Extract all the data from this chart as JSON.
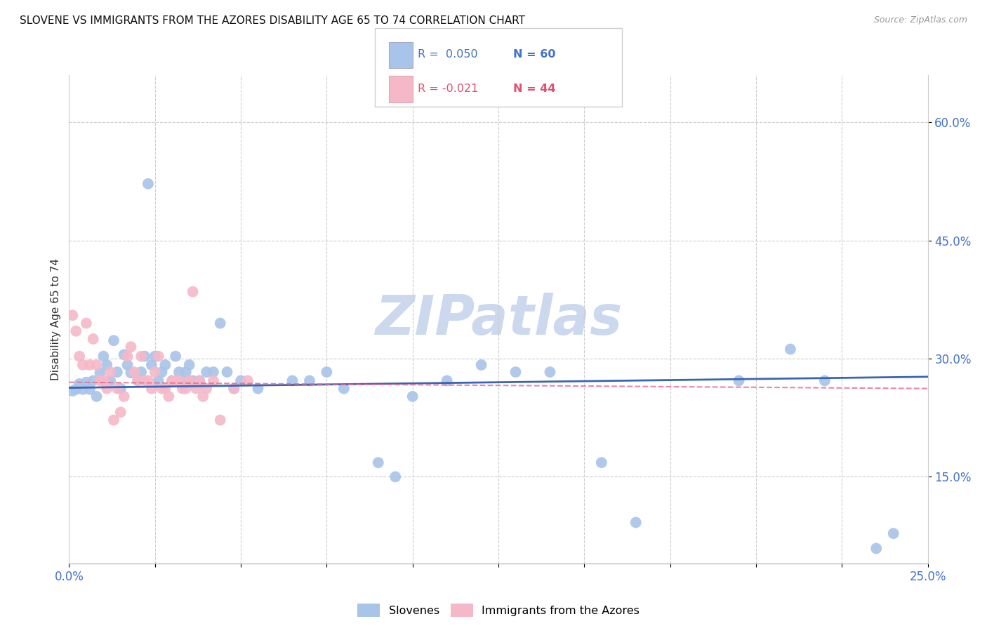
{
  "title": "SLOVENE VS IMMIGRANTS FROM THE AZORES DISABILITY AGE 65 TO 74 CORRELATION CHART",
  "source": "Source: ZipAtlas.com",
  "ylabel": "Disability Age 65 to 74",
  "xmin": 0.0,
  "xmax": 0.25,
  "ymin": 0.04,
  "ymax": 0.66,
  "blue_color": "#a8c4e8",
  "pink_color": "#f5b8c8",
  "blue_line_color": "#3a65b5",
  "pink_line_color": "#e87090",
  "axis_tick_color": "#4472c4",
  "watermark_color": "#ccd8ee",
  "legend_r1": "0.050",
  "legend_n1": "60",
  "legend_r2": "-0.021",
  "legend_n2": "44",
  "slovenes_x": [
    0.001,
    0.002,
    0.003,
    0.004,
    0.005,
    0.006,
    0.007,
    0.008,
    0.009,
    0.01,
    0.011,
    0.012,
    0.013,
    0.014,
    0.015,
    0.016,
    0.017,
    0.018,
    0.02,
    0.021,
    0.022,
    0.023,
    0.024,
    0.025,
    0.026,
    0.027,
    0.028,
    0.03,
    0.031,
    0.032,
    0.033,
    0.034,
    0.035,
    0.036,
    0.038,
    0.04,
    0.042,
    0.044,
    0.046,
    0.048,
    0.05,
    0.055,
    0.065,
    0.07,
    0.075,
    0.08,
    0.09,
    0.095,
    0.1,
    0.11,
    0.12,
    0.13,
    0.14,
    0.155,
    0.165,
    0.195,
    0.21,
    0.22,
    0.235,
    0.24
  ],
  "slovenes_y": [
    0.259,
    0.261,
    0.268,
    0.261,
    0.27,
    0.261,
    0.272,
    0.252,
    0.282,
    0.303,
    0.292,
    0.272,
    0.323,
    0.283,
    0.262,
    0.305,
    0.292,
    0.282,
    0.272,
    0.283,
    0.303,
    0.522,
    0.292,
    0.303,
    0.272,
    0.283,
    0.292,
    0.272,
    0.303,
    0.283,
    0.272,
    0.283,
    0.292,
    0.272,
    0.272,
    0.283,
    0.283,
    0.345,
    0.283,
    0.262,
    0.272,
    0.262,
    0.272,
    0.272,
    0.283,
    0.262,
    0.168,
    0.15,
    0.252,
    0.272,
    0.292,
    0.283,
    0.283,
    0.168,
    0.092,
    0.272,
    0.312,
    0.272,
    0.059,
    0.078
  ],
  "azores_x": [
    0.001,
    0.002,
    0.003,
    0.004,
    0.005,
    0.006,
    0.007,
    0.008,
    0.009,
    0.01,
    0.011,
    0.012,
    0.013,
    0.014,
    0.015,
    0.016,
    0.017,
    0.018,
    0.019,
    0.02,
    0.021,
    0.022,
    0.023,
    0.024,
    0.025,
    0.026,
    0.027,
    0.028,
    0.029,
    0.03,
    0.031,
    0.032,
    0.033,
    0.034,
    0.035,
    0.036,
    0.037,
    0.038,
    0.039,
    0.04,
    0.042,
    0.044,
    0.048,
    0.052
  ],
  "azores_y": [
    0.355,
    0.335,
    0.303,
    0.292,
    0.345,
    0.292,
    0.325,
    0.292,
    0.272,
    0.272,
    0.262,
    0.283,
    0.222,
    0.262,
    0.232,
    0.252,
    0.303,
    0.315,
    0.283,
    0.272,
    0.303,
    0.272,
    0.272,
    0.262,
    0.283,
    0.303,
    0.262,
    0.262,
    0.252,
    0.272,
    0.272,
    0.272,
    0.262,
    0.262,
    0.272,
    0.385,
    0.262,
    0.272,
    0.252,
    0.262,
    0.272,
    0.222,
    0.262,
    0.272
  ],
  "blue_trend_y0": 0.263,
  "blue_trend_y1": 0.277,
  "pink_trend_y0": 0.27,
  "pink_trend_y1": 0.262
}
